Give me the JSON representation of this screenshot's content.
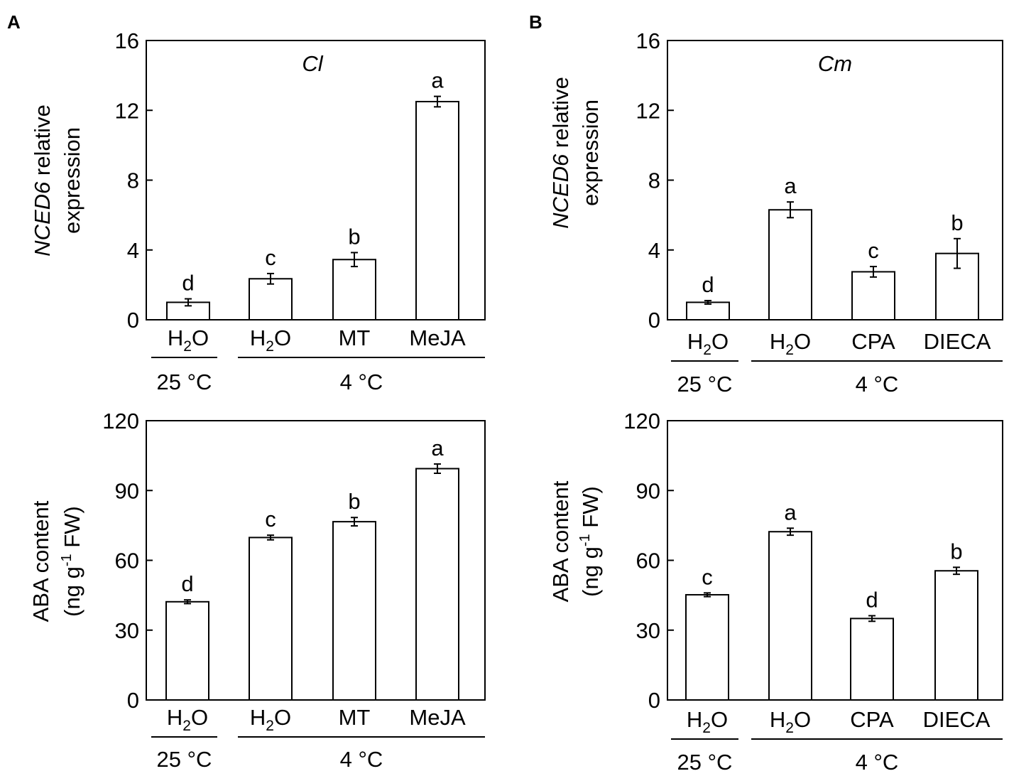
{
  "chart_data": [
    {
      "panel": "A",
      "type": "bar",
      "title": "Cl",
      "ylabel": {
        "italic": "NCED6",
        "rest": " relative",
        "line2": "expression"
      },
      "ylim": [
        0,
        16
      ],
      "yticks": [
        "0",
        "4",
        "8",
        "12",
        "16"
      ],
      "categories": [
        {
          "main": "H",
          "sub": "2",
          "end": "O"
        },
        {
          "main": "H",
          "sub": "2",
          "end": "O"
        },
        {
          "main": "MT",
          "sub": "",
          "end": ""
        },
        {
          "main": "MeJA",
          "sub": "",
          "end": ""
        }
      ],
      "values": [
        1.0,
        2.35,
        3.45,
        12.5
      ],
      "errors": [
        0.2,
        0.3,
        0.4,
        0.3
      ],
      "significance": [
        "d",
        "c",
        "b",
        "a"
      ],
      "groups": [
        {
          "label": "25 °C",
          "span": [
            0,
            0
          ]
        },
        {
          "label": "4 °C",
          "span": [
            1,
            3
          ]
        }
      ]
    },
    {
      "panel": "B",
      "type": "bar",
      "title": "Cm",
      "ylabel": {
        "italic": "NCED6",
        "rest": " relative",
        "line2": "expression"
      },
      "ylim": [
        0,
        16
      ],
      "yticks": [
        "0",
        "4",
        "8",
        "12",
        "16"
      ],
      "categories": [
        {
          "main": "H",
          "sub": "2",
          "end": "O"
        },
        {
          "main": "H",
          "sub": "2",
          "end": "O"
        },
        {
          "main": "CPA",
          "sub": "",
          "end": ""
        },
        {
          "main": "DIECA",
          "sub": "",
          "end": ""
        }
      ],
      "values": [
        1.0,
        6.3,
        2.75,
        3.8
      ],
      "errors": [
        0.1,
        0.45,
        0.3,
        0.85
      ],
      "significance": [
        "d",
        "a",
        "c",
        "b"
      ],
      "groups": [
        {
          "label": "25 °C",
          "span": [
            0,
            0
          ]
        },
        {
          "label": "4 °C",
          "span": [
            1,
            3
          ]
        }
      ]
    },
    {
      "panel": "",
      "type": "bar",
      "title": "",
      "ylabel": {
        "italic": "",
        "rest": "ABA content",
        "line2": "(ng g",
        "sup": "-1",
        "line2end": " FW)"
      },
      "ylim": [
        0,
        120
      ],
      "yticks": [
        "0",
        "30",
        "60",
        "90",
        "120"
      ],
      "categories": [
        {
          "main": "H",
          "sub": "2",
          "end": "O"
        },
        {
          "main": "H",
          "sub": "2",
          "end": "O"
        },
        {
          "main": "MT",
          "sub": "",
          "end": ""
        },
        {
          "main": "MeJA",
          "sub": "",
          "end": ""
        }
      ],
      "values": [
        42.2,
        69.8,
        76.6,
        99.4
      ],
      "errors": [
        0.8,
        1.0,
        1.8,
        2.0
      ],
      "significance": [
        "d",
        "c",
        "b",
        "a"
      ],
      "groups": [
        {
          "label": "25 °C",
          "span": [
            0,
            0
          ]
        },
        {
          "label": "4 °C",
          "span": [
            1,
            3
          ]
        }
      ]
    },
    {
      "panel": "",
      "type": "bar",
      "title": "",
      "ylabel": {
        "italic": "",
        "rest": "ABA content",
        "line2": "(ng g",
        "sup": "-1",
        "line2end": " FW)"
      },
      "ylim": [
        0,
        120
      ],
      "yticks": [
        "0",
        "30",
        "60",
        "90",
        "120"
      ],
      "categories": [
        {
          "main": "H",
          "sub": "2",
          "end": "O"
        },
        {
          "main": "H",
          "sub": "2",
          "end": "O"
        },
        {
          "main": "CPA",
          "sub": "",
          "end": ""
        },
        {
          "main": "DIECA",
          "sub": "",
          "end": ""
        }
      ],
      "values": [
        45.2,
        72.3,
        35.0,
        55.5
      ],
      "errors": [
        0.8,
        1.5,
        1.2,
        1.5
      ],
      "significance": [
        "c",
        "a",
        "d",
        "b"
      ],
      "groups": [
        {
          "label": "25 °C",
          "span": [
            0,
            0
          ]
        },
        {
          "label": "4 °C",
          "span": [
            1,
            3
          ]
        }
      ]
    }
  ]
}
